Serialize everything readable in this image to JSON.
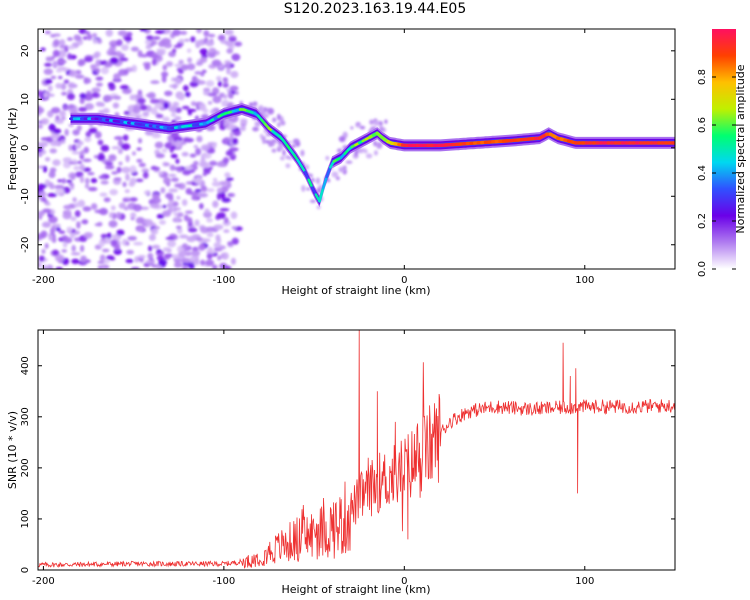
{
  "figure": {
    "title": "S120.2023.163.19.44.E05"
  },
  "chart_data": [
    {
      "type": "heatmap",
      "xlabel": "Height of straight line (km)",
      "ylabel": "Frequency (Hz)",
      "xlim": [
        -203,
        150
      ],
      "ylim": [
        -25,
        24.5
      ],
      "xticks": [
        -200,
        -100,
        0,
        100
      ],
      "yticks": [
        -20,
        -10,
        0,
        10,
        20
      ],
      "colorbar": {
        "label": "Normalized spectral amplitude",
        "range": [
          0,
          1
        ],
        "ticks": [
          "0.0",
          "0.2",
          "0.4",
          "0.6",
          "0.8"
        ],
        "tick_values": [
          0,
          0.2,
          0.4,
          0.6,
          0.8
        ],
        "colors": [
          "#ffffff",
          "#b07cf0",
          "#6a00e8",
          "#3050ff",
          "#00d8f0",
          "#00ff70",
          "#c0f000",
          "#ffc000",
          "#ff4000",
          "#ff1060"
        ]
      },
      "ridge": {
        "x": [
          -185,
          -170,
          -150,
          -130,
          -110,
          -100,
          -90,
          -82,
          -75,
          -68,
          -60,
          -55,
          -50,
          -47,
          -44,
          -40,
          -35,
          -30,
          -25,
          -20,
          -15,
          -12,
          -8,
          0,
          20,
          40,
          60,
          75,
          80,
          85,
          95,
          110,
          130,
          150
        ],
        "freq": [
          6,
          6,
          5,
          4,
          5,
          7,
          8,
          7,
          4,
          2,
          -2,
          -5,
          -9,
          -11,
          -7,
          -3,
          -2,
          0,
          1,
          2,
          3,
          2,
          1,
          0.5,
          0.5,
          1,
          1.5,
          2,
          3,
          2,
          1,
          1,
          1,
          1
        ],
        "amplitude": [
          0.3,
          0.3,
          0.3,
          0.3,
          0.4,
          0.45,
          0.5,
          0.5,
          0.5,
          0.45,
          0.4,
          0.4,
          0.4,
          0.4,
          0.4,
          0.45,
          0.5,
          0.5,
          0.6,
          0.65,
          0.6,
          0.6,
          0.7,
          0.98,
          0.98,
          0.85,
          0.9,
          0.95,
          0.85,
          0.85,
          0.9,
          0.95,
          0.95,
          0.9
        ]
      }
    },
    {
      "type": "line",
      "xlabel": "Height of straight line (km)",
      "ylabel": "SNR (10 * v/v)",
      "xlim": [
        -203,
        150
      ],
      "ylim": [
        0,
        470
      ],
      "xticks": [
        -200,
        -100,
        0,
        100
      ],
      "yticks": [
        0,
        100,
        200,
        300,
        400
      ],
      "series": [
        {
          "name": "SNR",
          "color": "#ee3030",
          "trend_x": [
            -203,
            -150,
            -100,
            -85,
            -75,
            -60,
            -45,
            -35,
            -25,
            -15,
            -5,
            5,
            15,
            25,
            35,
            50,
            70,
            100,
            130,
            150
          ],
          "trend_y": [
            10,
            12,
            12,
            18,
            35,
            60,
            75,
            90,
            140,
            170,
            185,
            210,
            245,
            290,
            310,
            320,
            315,
            320,
            320,
            322
          ],
          "spikes_x": [
            -25,
            -20,
            -15,
            -5,
            2,
            88,
            92,
            95,
            96
          ],
          "spikes_y": [
            470,
            220,
            350,
            290,
            60,
            445,
            380,
            395,
            150
          ]
        }
      ]
    }
  ]
}
